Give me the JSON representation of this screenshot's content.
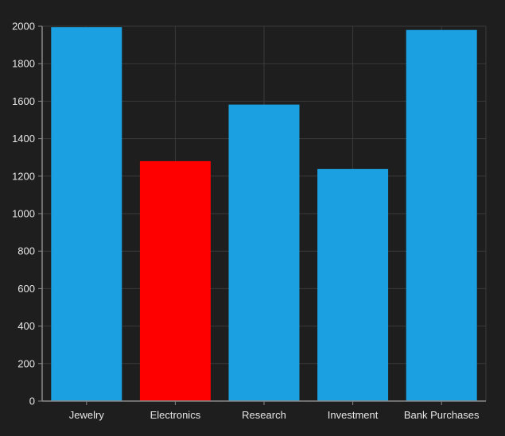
{
  "chart_data": {
    "type": "bar",
    "title": "",
    "xlabel": "",
    "ylabel": "",
    "categories": [
      "Jewelry",
      "Electronics",
      "Research",
      "Investment",
      "Bank Purchases"
    ],
    "values": [
      1995,
      1280,
      1582,
      1238,
      1980
    ],
    "ylim": [
      0,
      2000
    ],
    "yticks": [
      0,
      200,
      400,
      600,
      800,
      1000,
      1200,
      1400,
      1600,
      1800,
      2000
    ],
    "ytick_labels": [
      "0",
      "200",
      "400",
      "600",
      "800",
      "1000",
      "1200",
      "1400",
      "1600",
      "1800",
      "2000"
    ],
    "highlight_index": 1,
    "grid": true,
    "colors": {
      "background": "#1e1e1e",
      "bar": "#1ba1e2",
      "highlight": "#ff0000",
      "grid": "#3a3a3a",
      "axis": "#8a8a8a",
      "text": "#e6e6e6"
    }
  }
}
